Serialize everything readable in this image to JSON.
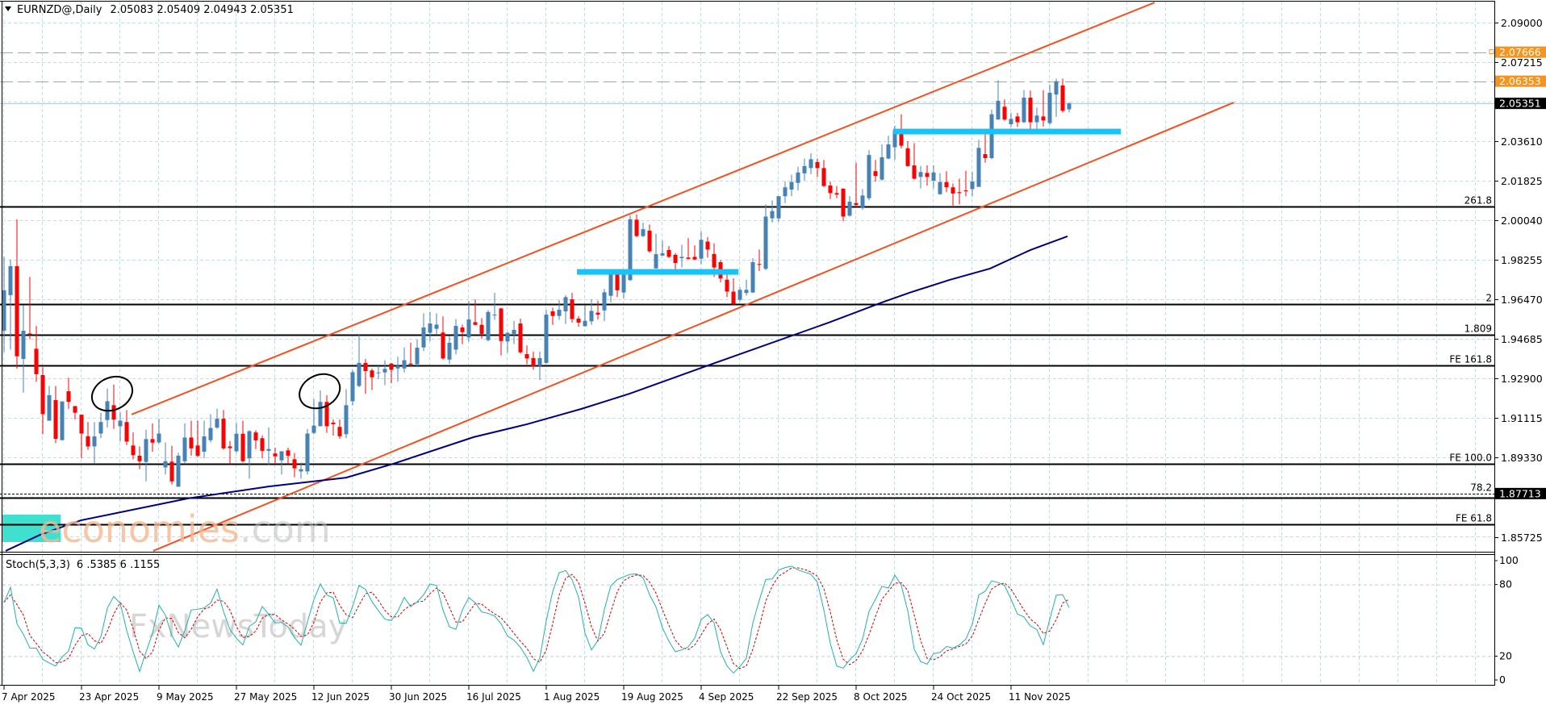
{
  "header": {
    "symbol_timeframe": "EURNZD@,Daily",
    "ohlc": "2.05083 2.05409 2.04943 2.05351",
    "icon": "triangle-down-icon"
  },
  "stoch": {
    "label": "Stoch(5,3,3)",
    "readout": "6 .5385 6 .1155",
    "axis": [
      {
        "label": "100",
        "value": 100
      },
      {
        "label": "80",
        "value": 80
      },
      {
        "label": "20",
        "value": 20
      },
      {
        "label": "0",
        "value": 0
      }
    ]
  },
  "watermark": {
    "brand": "economies",
    "suffix": ".com",
    "sub": "FxNewsToday"
  },
  "price_axis": {
    "ticks": [
      {
        "label": "2.09000",
        "price": 2.09
      },
      {
        "label": "2.07215",
        "price": 2.07215
      },
      {
        "label": "2.03610",
        "price": 2.0364
      },
      {
        "label": "2.01825",
        "price": 2.01855
      },
      {
        "label": "2.00040",
        "price": 2.0007
      },
      {
        "label": "1.98255",
        "price": 1.98285
      },
      {
        "label": "1.96470",
        "price": 1.965
      },
      {
        "label": "1.94685",
        "price": 1.94715
      },
      {
        "label": "1.92900",
        "price": 1.9293
      },
      {
        "label": "1.91115",
        "price": 1.91145
      },
      {
        "label": "1.89330",
        "price": 1.8936
      },
      {
        "label": "1.85725",
        "price": 1.85755
      }
    ],
    "markers": [
      {
        "label": "2.07666",
        "price": 2.07666,
        "color": "#f7941d"
      },
      {
        "label": "2.06353",
        "price": 2.06353,
        "color": "#f7941d"
      },
      {
        "label": "2.05351",
        "price": 2.05351,
        "color": "#000000"
      },
      {
        "label": "1.87713",
        "price": 1.8773,
        "color": "#000000"
      }
    ]
  },
  "date_axis": [
    {
      "label": "7 Apr 2025",
      "index": 0
    },
    {
      "label": "23 Apr 2025",
      "index": 12
    },
    {
      "label": "9 May 2025",
      "index": 24
    },
    {
      "label": "27 May 2025",
      "index": 36
    },
    {
      "label": "12 Jun 2025",
      "index": 48
    },
    {
      "label": "30 Jun 2025",
      "index": 60
    },
    {
      "label": "16 Jul 2025",
      "index": 72
    },
    {
      "label": "1 Aug 2025",
      "index": 84
    },
    {
      "label": "19 Aug 2025",
      "index": 96
    },
    {
      "label": "4 Sep 2025",
      "index": 108
    },
    {
      "label": "22 Sep 2025",
      "index": 120
    },
    {
      "label": "8 Oct 2025",
      "index": 132
    },
    {
      "label": "24 Oct 2025",
      "index": 144
    },
    {
      "label": "11 Nov 2025",
      "index": 156
    }
  ],
  "chart_data": {
    "type": "candlestick",
    "title": "EURNZD@,Daily",
    "ylim": [
      1.846,
      2.1
    ],
    "grid": true,
    "colors": {
      "bull": "#4682b4",
      "bear": "#ff0000",
      "channel": "#f4511e",
      "ma": "#000080",
      "support": "#19c3f5",
      "dash": "#f0962a",
      "zone": "#40e0d0",
      "stoch_main": "#20b2aa",
      "stoch_signal": "#d00000"
    },
    "candles_ohlc": [
      [
        1.9508,
        1.9842,
        1.9411,
        1.9691
      ],
      [
        1.9669,
        1.983,
        1.9423,
        1.98
      ],
      [
        1.98,
        2.0012,
        1.9338,
        1.9393
      ],
      [
        1.9381,
        1.9624,
        1.9229,
        1.9508
      ],
      [
        1.9496,
        1.9751,
        1.947,
        1.9494
      ],
      [
        1.9427,
        1.953,
        1.9278,
        1.9312
      ],
      [
        1.9308,
        1.9344,
        1.9041,
        1.9132
      ],
      [
        1.9102,
        1.9259,
        1.9102,
        1.9217
      ],
      [
        1.9195,
        1.9259,
        1.9001,
        1.902
      ],
      [
        1.9014,
        1.9189,
        1.9014,
        1.9189
      ],
      [
        1.9235,
        1.9296,
        1.9156,
        1.9187
      ],
      [
        1.9168,
        1.9168,
        1.9107,
        1.9138
      ],
      [
        1.9129,
        1.9129,
        1.8932,
        1.9044
      ],
      [
        1.9032,
        1.9096,
        1.897,
        1.8986
      ],
      [
        1.8986,
        1.9096,
        1.8907,
        1.9031
      ],
      [
        1.9044,
        1.9138,
        1.9023,
        1.9096
      ],
      [
        1.9105,
        1.9247,
        1.9071,
        1.919
      ],
      [
        1.9172,
        1.9265,
        1.9065,
        1.9107
      ],
      [
        1.9077,
        1.9142,
        1.9008,
        1.9102
      ],
      [
        1.9096,
        1.915,
        1.8992,
        1.9008
      ],
      [
        1.899,
        1.9049,
        1.8928,
        1.8946
      ],
      [
        1.8944,
        1.8986,
        1.8883,
        1.8919
      ],
      [
        1.8916,
        1.9061,
        1.8828,
        1.9019
      ],
      [
        1.9019,
        1.909,
        1.8962,
        1.9003
      ],
      [
        1.9004,
        1.9111,
        1.8999,
        1.9044
      ],
      [
        1.8891,
        1.9004,
        1.8859,
        1.8919
      ],
      [
        1.8917,
        1.8989,
        1.8814,
        1.8828
      ],
      [
        1.8804,
        1.8958,
        1.8804,
        1.8944
      ],
      [
        1.8919,
        1.909,
        1.8907,
        1.9026
      ],
      [
        1.9026,
        1.9102,
        1.8944,
        1.8977
      ],
      [
        1.899,
        1.9102,
        1.8938,
        1.8944
      ],
      [
        1.8962,
        1.9102,
        1.8932,
        1.9031
      ],
      [
        1.9014,
        1.9132,
        1.9004,
        1.9069
      ],
      [
        1.9071,
        1.9156,
        1.9065,
        1.9111
      ],
      [
        1.9111,
        1.915,
        1.897,
        1.8977
      ],
      [
        1.8986,
        1.901,
        1.8907,
        1.8978
      ],
      [
        1.8964,
        1.9092,
        1.8956,
        1.9043
      ],
      [
        1.9043,
        1.9102,
        1.8913,
        1.8919
      ],
      [
        1.8932,
        1.9059,
        1.884,
        1.9055
      ],
      [
        1.9049,
        1.9059,
        1.8974,
        1.9013
      ],
      [
        1.9023,
        1.9035,
        1.8932,
        1.8966
      ],
      [
        1.8966,
        1.9071,
        1.8901,
        1.8974
      ],
      [
        1.8954,
        1.898,
        1.8907,
        1.8941
      ],
      [
        1.8923,
        1.8964,
        1.8859,
        1.8964
      ],
      [
        1.8968,
        1.898,
        1.8907,
        1.8944
      ],
      [
        1.8928,
        1.8956,
        1.8847,
        1.8887
      ],
      [
        1.8873,
        1.8913,
        1.884,
        1.8883
      ],
      [
        1.8873,
        1.9065,
        1.8859,
        1.9044
      ],
      [
        1.9047,
        1.9199,
        1.9041,
        1.908
      ],
      [
        1.9077,
        1.9239,
        1.9077,
        1.9187
      ],
      [
        1.9187,
        1.9217,
        1.9047,
        1.9077
      ],
      [
        1.9093,
        1.9107,
        1.9035,
        1.9086
      ],
      [
        1.9074,
        1.9107,
        1.902,
        1.9032
      ],
      [
        1.9041,
        1.9244,
        1.9023,
        1.9172
      ],
      [
        1.919,
        1.9331,
        1.9172,
        1.9321
      ],
      [
        1.9259,
        1.949,
        1.9253,
        1.9363
      ],
      [
        1.9363,
        1.9381,
        1.9223,
        1.9326
      ],
      [
        1.9329,
        1.9338,
        1.9241,
        1.9298
      ],
      [
        1.9317,
        1.935,
        1.929,
        1.932
      ],
      [
        1.932,
        1.9375,
        1.9263,
        1.9336
      ],
      [
        1.936,
        1.9363,
        1.9272,
        1.9332
      ],
      [
        1.9338,
        1.9391,
        1.9278,
        1.935
      ],
      [
        1.9338,
        1.9432,
        1.932,
        1.9375
      ],
      [
        1.936,
        1.9454,
        1.935,
        1.9355
      ],
      [
        1.9357,
        1.9468,
        1.9344,
        1.9432
      ],
      [
        1.9433,
        1.9587,
        1.9417,
        1.9523
      ],
      [
        1.9499,
        1.9593,
        1.9462,
        1.9541
      ],
      [
        1.9517,
        1.9587,
        1.9494,
        1.9536
      ],
      [
        1.95,
        1.9573,
        1.9378,
        1.9383
      ],
      [
        1.9378,
        1.9484,
        1.9359,
        1.9454
      ],
      [
        1.9423,
        1.9561,
        1.9401,
        1.953
      ],
      [
        1.9523,
        1.9536,
        1.9448,
        1.9502
      ],
      [
        1.9478,
        1.9642,
        1.946,
        1.9559
      ],
      [
        1.9547,
        1.965,
        1.9533,
        1.9535
      ],
      [
        1.9535,
        1.9565,
        1.9472,
        1.9494
      ],
      [
        1.9466,
        1.9602,
        1.946,
        1.9593
      ],
      [
        1.9578,
        1.9679,
        1.9557,
        1.9581
      ],
      [
        1.9609,
        1.9612,
        1.9397,
        1.9462
      ],
      [
        1.946,
        1.9502,
        1.9409,
        1.9499
      ],
      [
        1.9494,
        1.9553,
        1.9448,
        1.9512
      ],
      [
        1.9541,
        1.9563,
        1.9405,
        1.9411
      ],
      [
        1.9403,
        1.9442,
        1.9357,
        1.9383
      ],
      [
        1.9385,
        1.9414,
        1.9332,
        1.9348
      ],
      [
        1.935,
        1.9414,
        1.9286,
        1.9385
      ],
      [
        1.9363,
        1.9603,
        1.936,
        1.9581
      ],
      [
        1.9596,
        1.9612,
        1.9535,
        1.9575
      ],
      [
        1.9575,
        1.9646,
        1.9557,
        1.9603
      ],
      [
        1.9596,
        1.9669,
        1.9539,
        1.966
      ],
      [
        1.965,
        1.9679,
        1.9545,
        1.9561
      ],
      [
        1.9563,
        1.9575,
        1.9527,
        1.9545
      ],
      [
        1.9529,
        1.9624,
        1.9527,
        1.9553
      ],
      [
        1.9551,
        1.965,
        1.9535,
        1.9598
      ],
      [
        1.959,
        1.9644,
        1.9559,
        1.9581
      ],
      [
        1.96,
        1.9697,
        1.9551,
        1.9682
      ],
      [
        1.9666,
        1.9769,
        1.9636,
        1.9763
      ],
      [
        1.9763,
        1.9773,
        1.966,
        1.9691
      ],
      [
        1.9681,
        1.9766,
        1.9654,
        1.9766
      ],
      [
        1.9737,
        2.0031,
        1.9733,
        2.0012
      ],
      [
        2.001,
        2.0033,
        1.9931,
        1.9936
      ],
      [
        1.9936,
        1.9997,
        1.9931,
        1.9967
      ],
      [
        1.996,
        1.9988,
        1.9861,
        1.9867
      ],
      [
        1.979,
        1.9946,
        1.9788,
        1.9854
      ],
      [
        1.9848,
        1.9915,
        1.9846,
        1.9858
      ],
      [
        1.9873,
        1.9891,
        1.9836,
        1.9842
      ],
      [
        1.9851,
        1.9858,
        1.9782,
        1.9814
      ],
      [
        1.9836,
        1.9897,
        1.9794,
        1.9842
      ],
      [
        1.9839,
        1.9927,
        1.983,
        1.9833
      ],
      [
        1.9842,
        1.9894,
        1.9827,
        1.983
      ],
      [
        1.9834,
        1.9958,
        1.9809,
        1.9919
      ],
      [
        1.9911,
        1.9931,
        1.9839,
        1.9875
      ],
      [
        1.9855,
        1.9903,
        1.9751,
        1.9794
      ],
      [
        1.9818,
        1.9827,
        1.9727,
        1.9745
      ],
      [
        1.9739,
        1.9764,
        1.966,
        1.9685
      ],
      [
        1.9685,
        1.9745,
        1.9624,
        1.963
      ],
      [
        1.9648,
        1.9705,
        1.9642,
        1.9693
      ],
      [
        1.9679,
        1.9739,
        1.9667,
        1.9693
      ],
      [
        1.9681,
        1.9836,
        1.9679,
        1.9818
      ],
      [
        1.981,
        1.9875,
        1.9778,
        1.9806
      ],
      [
        1.9788,
        2.0079,
        1.9782,
        2.0024
      ],
      [
        2.0016,
        2.0097,
        1.9997,
        2.0049
      ],
      [
        2.0016,
        2.0116,
        2.0,
        2.0116
      ],
      [
        2.0116,
        2.0182,
        2.0085,
        2.0156
      ],
      [
        2.0146,
        2.0213,
        2.0116,
        2.018
      ],
      [
        2.0176,
        2.0249,
        2.0142,
        2.0223
      ],
      [
        2.0219,
        2.0286,
        2.0186,
        2.0252
      ],
      [
        2.0243,
        2.031,
        2.0215,
        2.0283
      ],
      [
        2.027,
        2.0286,
        2.0203,
        2.0243
      ],
      [
        2.0243,
        2.028,
        2.0158,
        2.0162
      ],
      [
        2.0164,
        2.0182,
        2.0103,
        2.013
      ],
      [
        2.013,
        2.0162,
        2.0107,
        2.0124
      ],
      [
        2.015,
        2.0152,
        2.0003,
        2.0024
      ],
      [
        2.0028,
        2.0116,
        2.0024,
        2.0091
      ],
      [
        2.0085,
        2.0267,
        2.0073,
        2.0076
      ],
      [
        2.0066,
        2.0148,
        2.0054,
        2.0119
      ],
      [
        2.0107,
        2.0324,
        2.0097,
        2.0302
      ],
      [
        2.0229,
        2.028,
        2.0182,
        2.0207
      ],
      [
        2.0191,
        2.035,
        2.0186,
        2.0292
      ],
      [
        2.0286,
        2.0389,
        2.0283,
        2.035
      ],
      [
        2.0337,
        2.0434,
        2.028,
        2.0413
      ],
      [
        2.0405,
        2.0486,
        2.0332,
        2.0344
      ],
      [
        2.0332,
        2.0365,
        2.0249,
        2.0252
      ],
      [
        2.0255,
        2.0356,
        2.0191,
        2.0195
      ],
      [
        2.0203,
        2.0253,
        2.0152,
        2.0225
      ],
      [
        2.0221,
        2.0255,
        2.0164,
        2.0203
      ],
      [
        2.0186,
        2.0255,
        2.0152,
        2.0223
      ],
      [
        2.0125,
        2.0219,
        2.0122,
        2.018
      ],
      [
        2.018,
        2.0229,
        2.0134,
        2.0156
      ],
      [
        2.0156,
        2.0173,
        2.0073,
        2.0128
      ],
      [
        2.0134,
        2.0195,
        2.0079,
        2.013
      ],
      [
        2.0142,
        2.0231,
        2.0116,
        2.014
      ],
      [
        2.0148,
        2.0225,
        2.0116,
        2.0182
      ],
      [
        2.0158,
        2.0371,
        2.0158,
        2.0334
      ],
      [
        2.0306,
        2.0401,
        2.0267,
        2.0288
      ],
      [
        2.0288,
        2.0507,
        2.0283,
        2.0486
      ],
      [
        2.0462,
        2.064,
        2.0462,
        2.0547
      ],
      [
        2.052,
        2.0553,
        2.0456,
        2.0462
      ],
      [
        2.0441,
        2.0492,
        2.0429,
        2.0465
      ],
      [
        2.0476,
        2.0492,
        2.0429,
        2.045
      ],
      [
        2.045,
        2.0595,
        2.0446,
        2.0561
      ],
      [
        2.0561,
        2.0593,
        2.0407,
        2.045
      ],
      [
        2.045,
        2.0516,
        2.0419,
        2.048
      ],
      [
        2.0476,
        2.0595,
        2.0431,
        2.0458
      ],
      [
        2.0446,
        2.062,
        2.0437,
        2.0583
      ],
      [
        2.0575,
        2.0647,
        2.0474,
        2.0635
      ],
      [
        2.0616,
        2.0647,
        2.0494,
        2.0502
      ],
      [
        2.05083,
        2.05409,
        2.04943,
        2.05351
      ]
    ],
    "moving_average": [
      [
        0.25,
        1.8514
      ],
      [
        5.6,
        1.8587
      ],
      [
        11.9,
        1.8652
      ],
      [
        28.5,
        1.8751
      ],
      [
        41,
        1.8805
      ],
      [
        53,
        1.8845
      ],
      [
        60.25,
        1.8907
      ],
      [
        72.75,
        1.9028
      ],
      [
        81,
        1.9086
      ],
      [
        89.4,
        1.9155
      ],
      [
        96.9,
        1.9224
      ],
      [
        109.4,
        1.9355
      ],
      [
        127.75,
        1.9545
      ],
      [
        136,
        1.9636
      ],
      [
        140.25,
        1.968
      ],
      [
        146.5,
        1.9738
      ],
      [
        152.75,
        1.9789
      ],
      [
        159,
        1.9873
      ],
      [
        164.75,
        1.9935
      ]
    ],
    "channel": {
      "upper": [
        [
          19.75,
          1.913
        ],
        [
          178.25,
          2.0991
        ]
      ],
      "lower": [
        [
          23.1,
          1.8514
        ],
        [
          190.5,
          2.0539
        ]
      ]
    },
    "support_zones": [
      {
        "from_index": 88.75,
        "to_index": 113.75,
        "price": 1.9774
      },
      {
        "from_index": 137.75,
        "to_index": 173,
        "price": 2.0408
      }
    ],
    "highlight_ellipses": [
      {
        "index": 16.75,
        "price": 1.9224
      },
      {
        "index": 48.9,
        "price": 1.9235
      }
    ],
    "dashed_levels": [
      2.07666,
      2.06353
    ],
    "bid_price": 2.05351,
    "fib_levels": [
      {
        "label": "261.8",
        "price": 2.0069,
        "style": "solid"
      },
      {
        "label": "2",
        "price": 1.9629,
        "style": "solid"
      },
      {
        "label": "1.809",
        "price": 1.949,
        "style": "solid"
      },
      {
        "label": "FE 161.8",
        "price": 1.9352,
        "style": "solid"
      },
      {
        "label": "FE 100.0",
        "price": 1.8907,
        "style": "solid"
      },
      {
        "label": "78.2",
        "price": 1.8773,
        "style": "dotted"
      },
      {
        "label": "",
        "price": 1.8754,
        "style": "solid"
      },
      {
        "label": "FE 61.8",
        "price": 1.8634,
        "style": "solid"
      }
    ],
    "zone": {
      "from_index": -0.25,
      "to_index": 8.75,
      "top": 1.8678,
      "bottom": 1.8554
    },
    "stochastic": {
      "k_period": 5,
      "d_period": 3,
      "slowing": 3,
      "levels": [
        80,
        20
      ],
      "range": [
        0,
        100
      ]
    }
  }
}
